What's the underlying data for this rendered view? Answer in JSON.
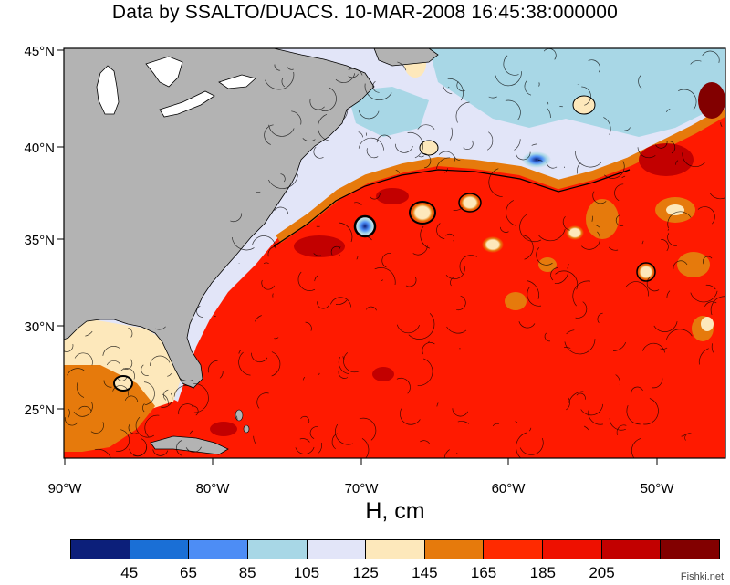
{
  "title": "Data by SSALTO/DUACS. 10-MAR-2008 16:45:38:000000",
  "map": {
    "lat_labels": [
      "45°N",
      "40°N",
      "35°N",
      "30°N",
      "25°N"
    ],
    "lon_labels": [
      "90°W",
      "80°W",
      "70°W",
      "60°W",
      "50°W"
    ],
    "land_color": "#b3b3b3",
    "ocean_base_color": "#ff1a00"
  },
  "xlabel": "H, cm",
  "colorbar": {
    "colors": [
      "#0c1f7a",
      "#1a6fd6",
      "#4d8df5",
      "#a8d7e6",
      "#e2e5f8",
      "#fde8bb",
      "#e67a0c",
      "#ff2a00",
      "#ee1000",
      "#c20000",
      "#820000"
    ],
    "tick_labels": [
      "45",
      "65",
      "85",
      "105",
      "125",
      "145",
      "165",
      "185",
      "205"
    ]
  },
  "watermark": "Fishki.net"
}
